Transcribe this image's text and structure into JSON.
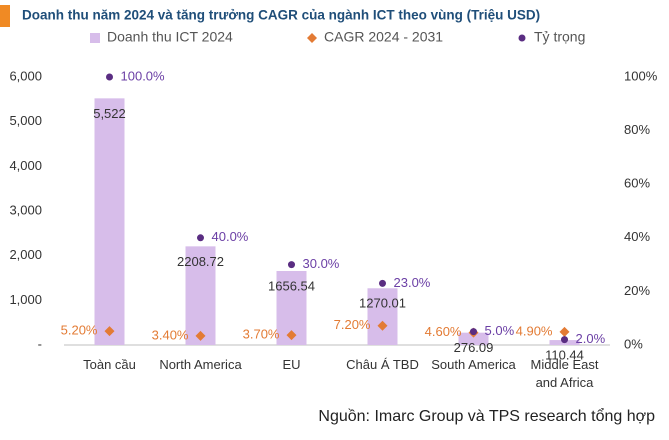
{
  "chart_data": {
    "type": "bar",
    "title": "Doanh thu năm 2024 và tăng trưởng CAGR của ngành ICT theo vùng (Triệu USD)",
    "source": "Nguồn: Imarc Group và TPS research tổng hợp",
    "categories": [
      "Toàn cầu",
      "North America",
      "EU",
      "Châu Á TBD",
      "South America",
      "Middle East and Africa"
    ],
    "series": [
      {
        "name": "Doanh thu ICT 2024",
        "marker": "bar",
        "color": "#d7bdea",
        "values": [
          5522,
          2208.72,
          1656.54,
          1270.01,
          276.09,
          110.44
        ],
        "value_labels": [
          "5,522",
          "2208.72",
          "1656.54",
          "1270.01",
          "276.09",
          "110.44"
        ]
      },
      {
        "name": "CAGR 2024 - 2031",
        "marker": "diamond",
        "color": "#e37b34",
        "axis": "y2",
        "values": [
          5.2,
          3.4,
          3.7,
          7.2,
          4.6,
          4.9
        ],
        "value_labels": [
          "5.20%",
          "3.40%",
          "3.70%",
          "7.20%",
          "4.60%",
          "4.90%"
        ]
      },
      {
        "name": "Tỷ trọng",
        "marker": "dot",
        "color": "#5a2d82",
        "label_color": "#6b3fa5",
        "axis": "y2",
        "values": [
          100,
          40,
          30,
          23,
          5,
          2
        ],
        "value_labels": [
          "100.0%",
          "40.0%",
          "30.0%",
          "23.0%",
          "5.0%",
          "2.0%"
        ]
      }
    ],
    "ylim": [
      0,
      6000
    ],
    "yticks": [
      {
        "value": 0,
        "label": "-"
      },
      {
        "value": 1000,
        "label": "1,000"
      },
      {
        "value": 2000,
        "label": "2,000"
      },
      {
        "value": 3000,
        "label": "3,000"
      },
      {
        "value": 4000,
        "label": "4,000"
      },
      {
        "value": 5000,
        "label": "5,000"
      },
      {
        "value": 6000,
        "label": "6,000"
      }
    ],
    "y2lim": [
      0,
      100
    ],
    "y2ticks": [
      {
        "value": 0,
        "label": "0%"
      },
      {
        "value": 20,
        "label": "20%"
      },
      {
        "value": 40,
        "label": "40%"
      },
      {
        "value": 60,
        "label": "60%"
      },
      {
        "value": 80,
        "label": "80%"
      },
      {
        "value": 100,
        "label": "100%"
      }
    ]
  }
}
